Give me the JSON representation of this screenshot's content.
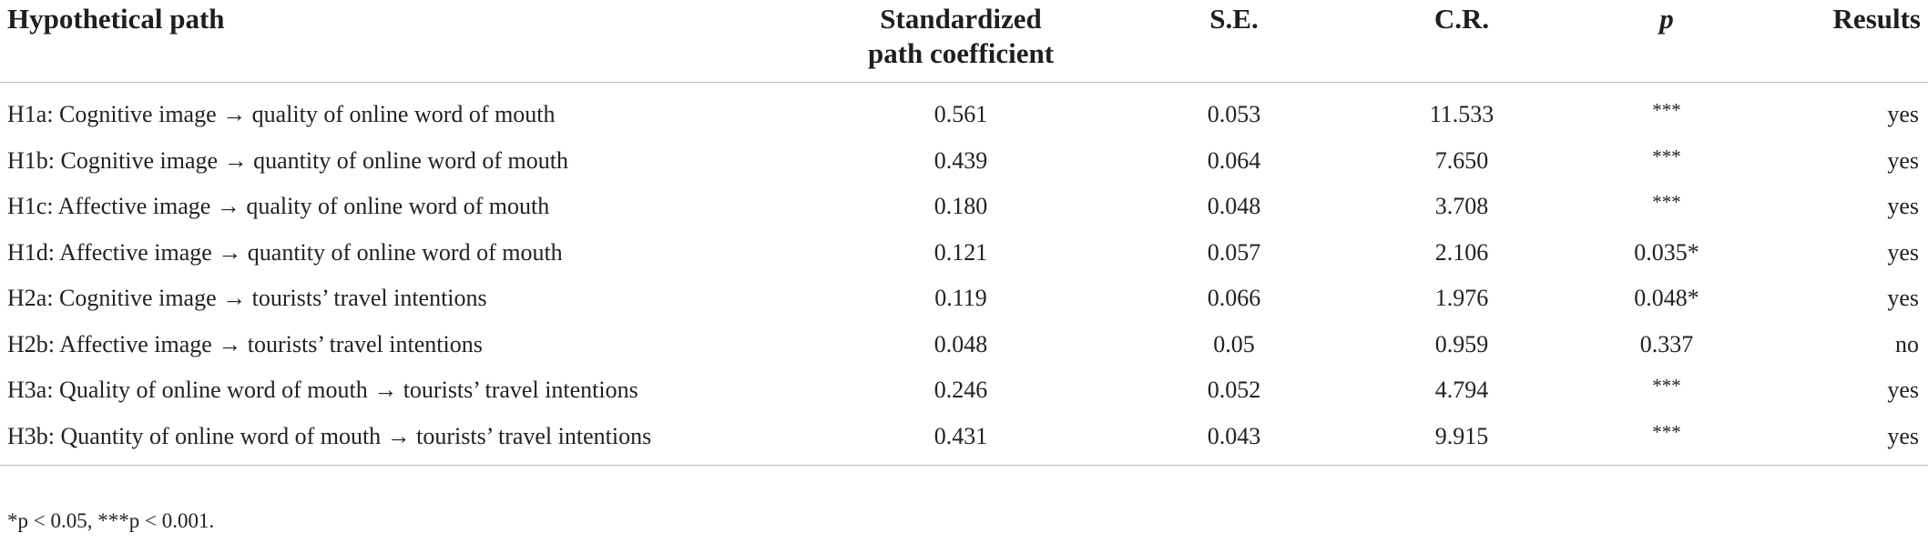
{
  "table": {
    "headers": {
      "path": "Hypothetical path",
      "coef_line1": "Standardized",
      "coef_line2": "path coefficient",
      "se": "S.E.",
      "cr": "C.R.",
      "p": "p",
      "results": "Results"
    },
    "rows": [
      {
        "path": "H1a: Cognitive image → quality of online word of mouth",
        "coef": "0.561",
        "se": "0.053",
        "cr": "11.533",
        "p": "***",
        "result": "yes"
      },
      {
        "path": "H1b: Cognitive image → quantity of online word of mouth",
        "coef": "0.439",
        "se": "0.064",
        "cr": "7.650",
        "p": "***",
        "result": "yes"
      },
      {
        "path": "H1c: Affective image → quality of online word of mouth",
        "coef": "0.180",
        "se": "0.048",
        "cr": "3.708",
        "p": "***",
        "result": "yes"
      },
      {
        "path": "H1d: Affective image → quantity of online word of mouth",
        "coef": "0.121",
        "se": "0.057",
        "cr": "2.106",
        "p": "0.035*",
        "result": "yes"
      },
      {
        "path": "H2a: Cognitive image → tourists’ travel intentions",
        "coef": "0.119",
        "se": "0.066",
        "cr": "1.976",
        "p": "0.048*",
        "result": "yes"
      },
      {
        "path": "H2b: Affective image → tourists’ travel intentions",
        "coef": "0.048",
        "se": "0.05",
        "cr": "0.959",
        "p": "0.337",
        "result": "no"
      },
      {
        "path": "H3a: Quality of online word of mouth → tourists’ travel intentions",
        "coef": "0.246",
        "se": "0.052",
        "cr": "4.794",
        "p": "***",
        "result": "yes"
      },
      {
        "path": "H3b: Quantity of online word of mouth → tourists’ travel intentions",
        "coef": "0.431",
        "se": "0.043",
        "cr": "9.915",
        "p": "***",
        "result": "yes"
      }
    ]
  },
  "footnote": "*p < 0.05, ***p < 0.001."
}
